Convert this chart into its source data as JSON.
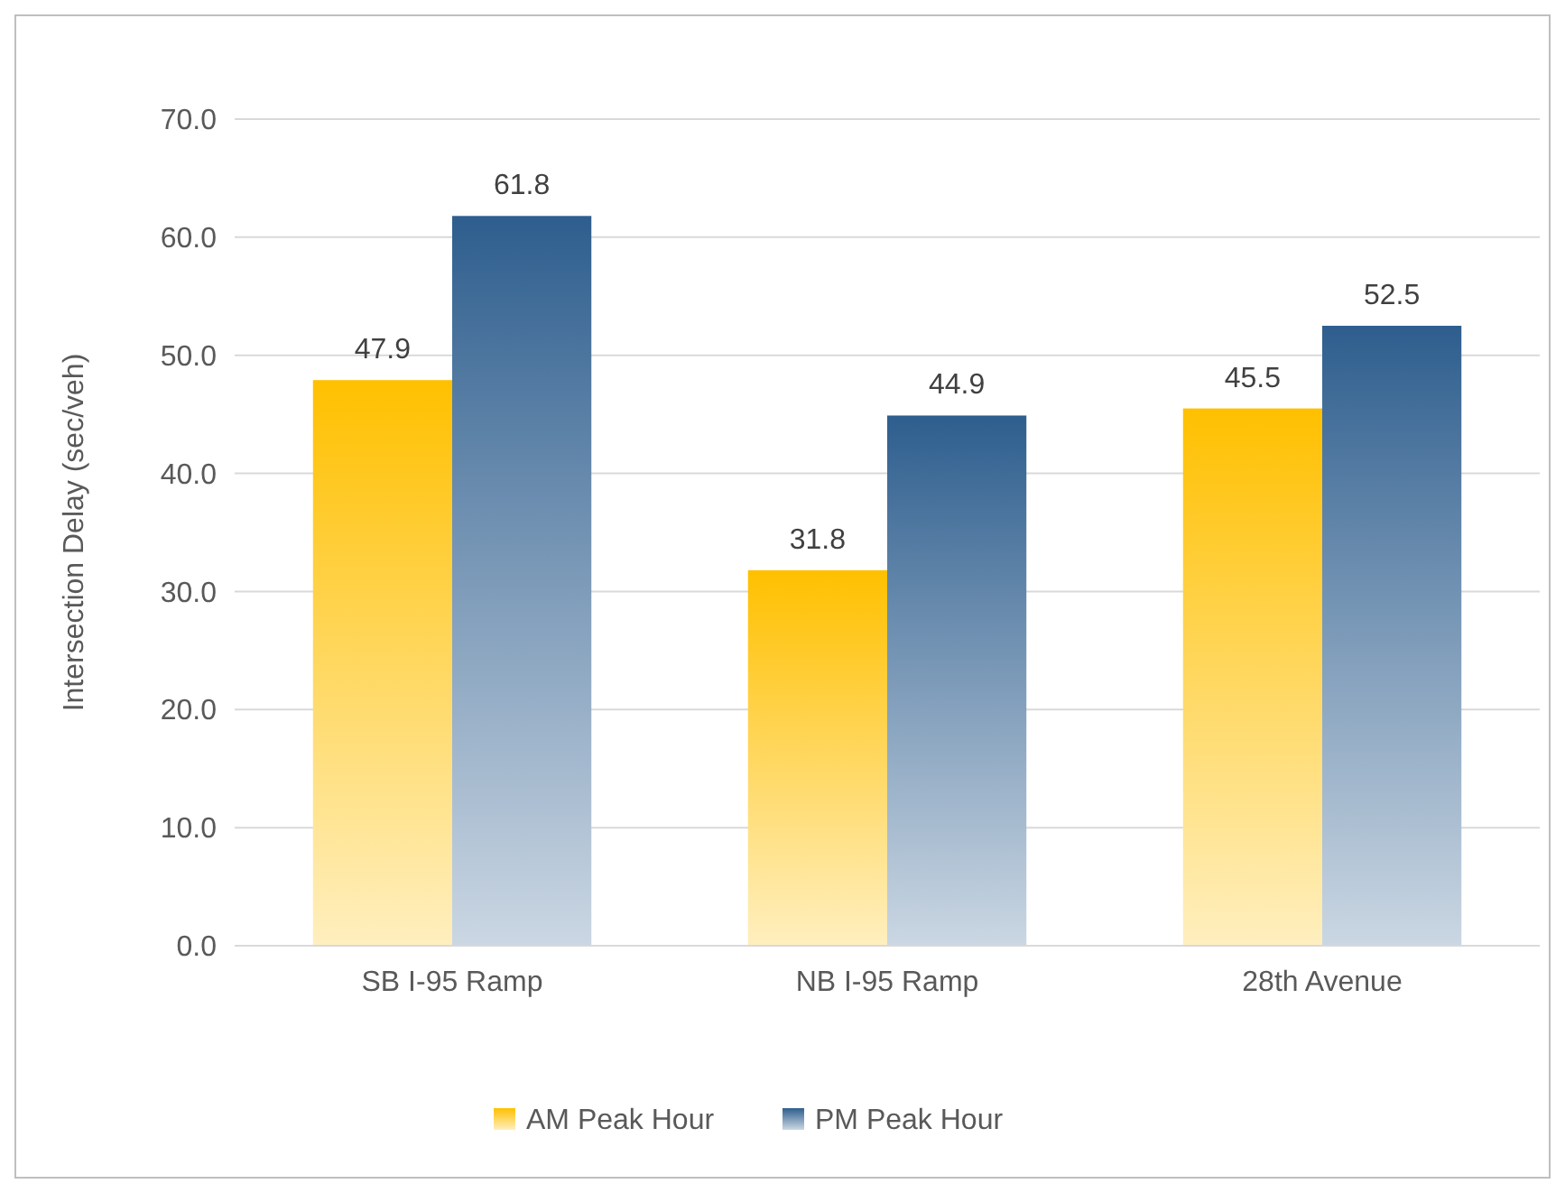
{
  "chart_data": {
    "type": "bar",
    "ylabel": "Intersection Delay (sec/veh)",
    "categories": [
      "SB I-95 Ramp",
      "NB I-95 Ramp",
      "28th Avenue"
    ],
    "series": [
      {
        "name": "AM Peak Hour",
        "color": "#ffc000",
        "values": [
          47.9,
          31.8,
          45.5
        ]
      },
      {
        "name": "PM Peak Hour",
        "color": "#2e5e8e",
        "values": [
          61.8,
          44.9,
          52.5
        ]
      }
    ],
    "ylim": [
      0,
      70
    ],
    "yticks": [
      {
        "value": 0,
        "label": "0.0"
      },
      {
        "value": 10,
        "label": "10.0"
      },
      {
        "value": 20,
        "label": "20.0"
      },
      {
        "value": 30,
        "label": "30.0"
      },
      {
        "value": 40,
        "label": "40.0"
      },
      {
        "value": 50,
        "label": "50.0"
      },
      {
        "value": 60,
        "label": "60.0"
      },
      {
        "value": 70,
        "label": "70.0"
      }
    ],
    "grid": "y",
    "legend": "bottom",
    "data_labels": true
  }
}
